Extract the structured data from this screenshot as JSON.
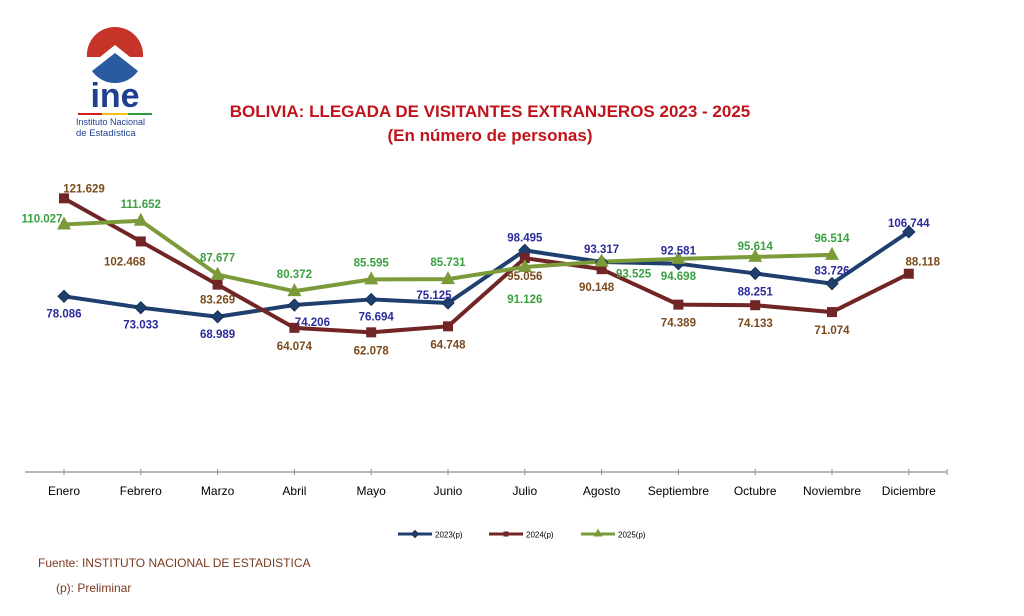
{
  "logo": {
    "acronym": "ine",
    "line1": "Instituto Nacional",
    "line2": "de Estadística"
  },
  "footer": {
    "source": "Fuente: INSTITUTO NACIONAL DE ESTADISTICA",
    "note": "(p): Preliminar"
  },
  "chart_data": {
    "type": "line",
    "title": "BOLIVIA: LLEGADA DE VISITANTES EXTRANJEROS 2023 - 2025",
    "subtitle": "(En número de personas)",
    "xlabel": "",
    "ylabel": "",
    "ylim": [
      0,
      130
    ],
    "grid": false,
    "legend": "bottom",
    "categories": [
      "Enero",
      "Febrero",
      "Marzo",
      "Abril",
      "Mayo",
      "Junio",
      "Julio",
      "Agosto",
      "Septiembre",
      "Octubre",
      "Noviembre",
      "Diciembre"
    ],
    "series": [
      {
        "name": "2023(p)",
        "marker": "diamond",
        "color": "#1f3f6f",
        "label_color": "#2a2a9a",
        "values": [
          78.086,
          73.033,
          68.989,
          74.206,
          76.694,
          75.125,
          98.495,
          93.317,
          92.581,
          88.251,
          83.726,
          106.744
        ],
        "labels": [
          "78.086",
          "73.033",
          "68.989",
          "74.206",
          "76.694",
          "75.125",
          "98.495",
          "93.317",
          "92.581",
          "88.251",
          "83.726",
          "106.744"
        ]
      },
      {
        "name": "2024(p)",
        "marker": "square",
        "color": "#722525",
        "label_color": "#7a4a1c",
        "values": [
          121.629,
          102.468,
          83.269,
          64.074,
          62.078,
          64.748,
          95.056,
          90.148,
          74.389,
          74.133,
          71.074,
          88.118
        ],
        "labels": [
          "121.629",
          "102.468",
          "83.269",
          "64.074",
          "62.078",
          "64.748",
          "95.056",
          "90.148",
          "74.389",
          "74.133",
          "71.074",
          "88.118"
        ]
      },
      {
        "name": "2025(p)",
        "marker": "triangle",
        "color": "#7b9b3a",
        "label_color": "#3aa13f",
        "values": [
          110.027,
          111.652,
          87.677,
          80.372,
          85.595,
          85.731,
          91.126,
          93.525,
          94.698,
          95.614,
          96.514,
          null
        ],
        "labels": [
          "110.027",
          "111.652",
          "87.677",
          "80.372",
          "85.595",
          "85.731",
          "91.126",
          "93.525",
          "94.698",
          "95.614",
          "96.514",
          null
        ]
      }
    ]
  }
}
